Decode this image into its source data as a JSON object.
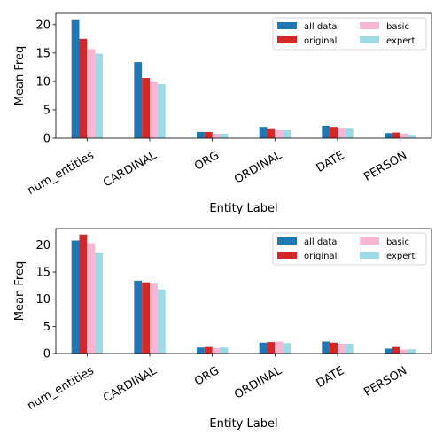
{
  "figure": {
    "background": "#ffffff"
  },
  "chart_data": [
    {
      "type": "bar",
      "title": "",
      "xlabel": "Entity Label",
      "ylabel": "Mean Freq",
      "ylim": [
        0,
        22
      ],
      "yticks": [
        0,
        5,
        10,
        15,
        20
      ],
      "categories": [
        "num_entities",
        "CARDINAL",
        "ORG",
        "ORDINAL",
        "DATE",
        "PERSON"
      ],
      "series": [
        {
          "name": "all data",
          "color": "#1f77b4",
          "values": [
            20.8,
            13.4,
            1.1,
            2.0,
            2.2,
            0.9
          ]
        },
        {
          "name": "original",
          "color": "#d62728",
          "values": [
            17.5,
            10.6,
            1.1,
            1.6,
            2.0,
            1.0
          ]
        },
        {
          "name": "basic",
          "color": "#f7b6d2",
          "values": [
            15.7,
            10.0,
            0.8,
            1.4,
            1.7,
            0.8
          ]
        },
        {
          "name": "expert",
          "color": "#9edae5",
          "values": [
            14.9,
            9.5,
            0.8,
            1.4,
            1.7,
            0.6
          ]
        }
      ],
      "grid": false,
      "legend_position": "top-right",
      "legend_columns": 2,
      "xtick_rotation": 30
    },
    {
      "type": "bar",
      "title": "",
      "xlabel": "Entity Label",
      "ylabel": "Mean Freq",
      "ylim": [
        0,
        23
      ],
      "yticks": [
        0,
        5,
        10,
        15,
        20
      ],
      "categories": [
        "num_entities",
        "CARDINAL",
        "ORG",
        "ORDINAL",
        "DATE",
        "PERSON"
      ],
      "series": [
        {
          "name": "all data",
          "color": "#1f77b4",
          "values": [
            20.8,
            13.4,
            1.1,
            2.0,
            2.2,
            0.9
          ]
        },
        {
          "name": "original",
          "color": "#d62728",
          "values": [
            21.9,
            13.1,
            1.2,
            2.1,
            2.0,
            1.2
          ]
        },
        {
          "name": "basic",
          "color": "#f7b6d2",
          "values": [
            20.3,
            13.0,
            1.0,
            2.2,
            1.8,
            0.7
          ]
        },
        {
          "name": "expert",
          "color": "#9edae5",
          "values": [
            18.6,
            11.8,
            1.1,
            1.9,
            1.8,
            0.8
          ]
        }
      ],
      "grid": false,
      "legend_position": "top-right",
      "legend_columns": 2,
      "xtick_rotation": 30
    }
  ]
}
